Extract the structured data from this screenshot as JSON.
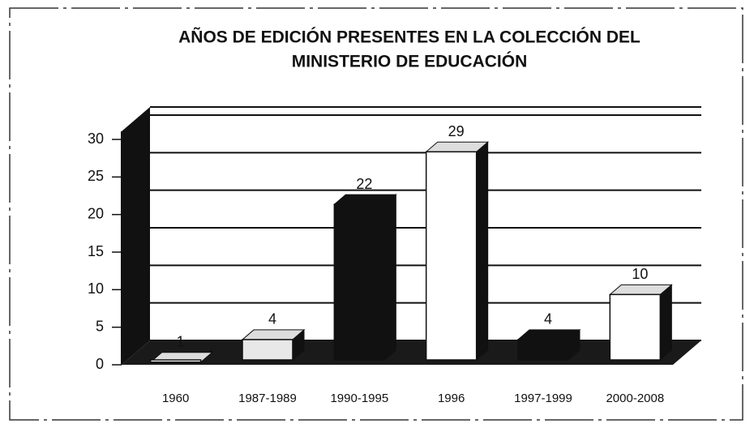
{
  "chart_data": {
    "type": "bar3d",
    "title": [
      "AÑOS DE EDICIÓN PRESENTES EN LA COLECCIÓN DEL",
      "MINISTERIO DE EDUCACIÓN"
    ],
    "categories": [
      "1960",
      "1987-1989",
      "1990-1995",
      "1996",
      "1997-1999",
      "2000-2008"
    ],
    "values": [
      1,
      4,
      22,
      29,
      4,
      10
    ],
    "colors": [
      "#ffffff",
      "#e8e8e8",
      "#111111",
      "#ffffff",
      "#111111",
      "#ffffff"
    ],
    "ylim": [
      0,
      30
    ],
    "yticks": [
      0,
      5,
      10,
      15,
      20,
      25,
      30
    ],
    "grid": true
  }
}
